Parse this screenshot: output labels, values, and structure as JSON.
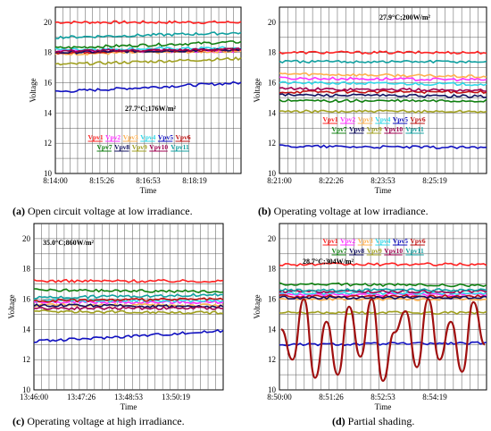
{
  "panels": [
    {
      "id": "a",
      "caption_letter": "(a)",
      "caption_text": " Open circuit voltage at low irradiance."
    },
    {
      "id": "b",
      "caption_letter": "(b)",
      "caption_text": " Operating voltage at low irradiance."
    },
    {
      "id": "c",
      "caption_letter": "(c)",
      "caption_text": " Operating voltage at high irradiance."
    },
    {
      "id": "d",
      "caption_letter": "(d)",
      "caption_text": " Partial shading."
    }
  ],
  "colors": {
    "Vpv1": "#ff2020",
    "Vpv2": "#ff30ff",
    "Vpv3": "#ffb050",
    "Vpv4": "#30d8e8",
    "Vpv5": "#1010c0",
    "Vpv6": "#c01010",
    "Vpv7": "#108010",
    "Vpv8": "#101060",
    "Vpv9": "#a0a020",
    "Vpv10": "#a00050",
    "Vpv11": "#10a0a0",
    "shade": "#a01010"
  },
  "chart_data": [
    {
      "type": "line",
      "annotation": "27.7°C;176W/m²",
      "xlabel": "Time",
      "ylabel": "Voltage",
      "xticks": [
        "8:14:00",
        "8:15:26",
        "8:16:53",
        "8:18:19"
      ],
      "ylim": [
        10,
        21
      ],
      "yticks": [
        10,
        12,
        14,
        16,
        18,
        20
      ],
      "grid": true,
      "legend_rows": [
        [
          "Vpv1",
          "Vpv2",
          "Vpv3",
          "Vpv4",
          "Vpv5",
          "Vpv6"
        ],
        [
          "Vpv7",
          "Vpv8",
          "Vpv9",
          "Vpv10",
          "Vpv11"
        ]
      ],
      "legend_placement": "lower-center",
      "series": [
        {
          "name": "Vpv1",
          "values": [
            20.0,
            20.0
          ]
        },
        {
          "name": "Vpv2",
          "values": [
            18.1,
            18.1
          ]
        },
        {
          "name": "Vpv3",
          "values": [
            17.9,
            18.1
          ]
        },
        {
          "name": "Vpv4",
          "values": [
            18.2,
            18.3
          ]
        },
        {
          "name": "Vpv5",
          "values": [
            15.4,
            16.0
          ]
        },
        {
          "name": "Vpv6",
          "values": [
            18.0,
            18.2
          ]
        },
        {
          "name": "Vpv7",
          "values": [
            18.3,
            18.7
          ]
        },
        {
          "name": "Vpv8",
          "values": [
            18.0,
            18.2
          ]
        },
        {
          "name": "Vpv9",
          "values": [
            17.2,
            17.6
          ]
        },
        {
          "name": "Vpv10",
          "values": [
            18.1,
            18.2
          ]
        },
        {
          "name": "Vpv11",
          "values": [
            19.0,
            19.3
          ]
        }
      ]
    },
    {
      "type": "line",
      "annotation": "27.9°C;200W/m²",
      "xlabel": "Time",
      "ylabel": "Voltage",
      "xticks": [
        "8:21:00",
        "8:22:26",
        "8:23:53",
        "8:25:19"
      ],
      "ylim": [
        10,
        21
      ],
      "yticks": [
        10,
        12,
        14,
        16,
        18,
        20
      ],
      "grid": true,
      "legend_rows": [
        [
          "Vpv1",
          "Vpv2",
          "Vpv3",
          "Vpv4",
          "Vpv5",
          "Vpv6"
        ],
        [
          "Vpv7",
          "Vpv8",
          "Vpv9",
          "Vpv10",
          "Vpv11"
        ]
      ],
      "legend_placement": "lower-center",
      "series": [
        {
          "name": "Vpv1",
          "values": [
            18.0,
            18.0
          ]
        },
        {
          "name": "Vpv2",
          "values": [
            16.3,
            16.2
          ]
        },
        {
          "name": "Vpv3",
          "values": [
            16.6,
            16.4
          ]
        },
        {
          "name": "Vpv4",
          "values": [
            16.0,
            15.9
          ]
        },
        {
          "name": "Vpv5",
          "values": [
            11.8,
            11.7
          ]
        },
        {
          "name": "Vpv6",
          "values": [
            15.4,
            15.4
          ]
        },
        {
          "name": "Vpv7",
          "values": [
            14.8,
            14.8
          ]
        },
        {
          "name": "Vpv8",
          "values": [
            15.2,
            15.1
          ]
        },
        {
          "name": "Vpv9",
          "values": [
            14.1,
            14.1
          ]
        },
        {
          "name": "Vpv10",
          "values": [
            15.6,
            15.5
          ]
        },
        {
          "name": "Vpv11",
          "values": [
            17.4,
            17.4
          ]
        }
      ]
    },
    {
      "type": "line",
      "annotation": "35.0°C;860W/m²",
      "xlabel": "Time",
      "ylabel": "Voltage",
      "xticks": [
        "13:46:00",
        "13:47:26",
        "13:48:53",
        "13:50:19"
      ],
      "ylim": [
        10,
        21
      ],
      "yticks": [
        10,
        12,
        14,
        16,
        18,
        20
      ],
      "grid": true,
      "series": [
        {
          "name": "Vpv1",
          "values": [
            17.2,
            17.2
          ]
        },
        {
          "name": "Vpv2",
          "values": [
            15.8,
            15.8
          ]
        },
        {
          "name": "Vpv3",
          "values": [
            15.6,
            15.6
          ]
        },
        {
          "name": "Vpv4",
          "values": [
            15.9,
            15.9
          ]
        },
        {
          "name": "Vpv5",
          "values": [
            13.2,
            13.9
          ]
        },
        {
          "name": "Vpv6",
          "values": [
            15.9,
            16.0
          ]
        },
        {
          "name": "Vpv7",
          "values": [
            16.6,
            16.5
          ]
        },
        {
          "name": "Vpv8",
          "values": [
            15.6,
            15.5
          ]
        },
        {
          "name": "Vpv9",
          "values": [
            15.2,
            15.1
          ]
        },
        {
          "name": "Vpv10",
          "values": [
            15.4,
            15.4
          ]
        },
        {
          "name": "Vpv11",
          "values": [
            16.1,
            16.3
          ]
        }
      ]
    },
    {
      "type": "line",
      "annotation": "28.7°C;304W/m²",
      "xlabel": "Time",
      "ylabel": "Voltage",
      "xticks": [
        "8:50:00",
        "8:51:26",
        "8:52:53",
        "8:54:19"
      ],
      "ylim": [
        10,
        21
      ],
      "yticks": [
        10,
        12,
        14,
        16,
        18,
        20
      ],
      "grid": true,
      "legend_rows": [
        [
          "Vpv1",
          "Vpv2",
          "Vpv3",
          "Vpv4",
          "Vpv5",
          "Vpv6"
        ],
        [
          "Vpv7",
          "Vpv8",
          "Vpv9",
          "Vpv10",
          "Vpv11"
        ]
      ],
      "legend_placement": "upper-center",
      "series": [
        {
          "name": "Vpv1",
          "values": [
            18.3,
            18.3
          ]
        },
        {
          "name": "Vpv2",
          "values": [
            16.3,
            16.3
          ]
        },
        {
          "name": "Vpv3",
          "values": [
            16.0,
            16.0
          ]
        },
        {
          "name": "Vpv4",
          "values": [
            16.4,
            16.4
          ]
        },
        {
          "name": "Vpv5",
          "values": [
            13.0,
            13.1
          ]
        },
        {
          "name": "Vpv6",
          "values": [
            16.2,
            16.2
          ]
        },
        {
          "name": "Vpv7",
          "values": [
            17.0,
            16.9
          ]
        },
        {
          "name": "Vpv8",
          "values": [
            16.1,
            16.1
          ]
        },
        {
          "name": "Vpv9",
          "values": [
            15.1,
            15.1
          ]
        },
        {
          "name": "Vpv10",
          "values": [
            16.5,
            16.5
          ]
        },
        {
          "name": "Vpv11",
          "values": [
            16.6,
            16.6
          ]
        },
        {
          "name": "Vpv6",
          "values": [
            14.0,
            12.0,
            16.0,
            10.8,
            14.5,
            11.0,
            15.5,
            12.2,
            16.0,
            10.6,
            13.8,
            15.2,
            11.5,
            16.0,
            12.0,
            14.5,
            11.2,
            15.8,
            13.0
          ]
        }
      ]
    }
  ]
}
